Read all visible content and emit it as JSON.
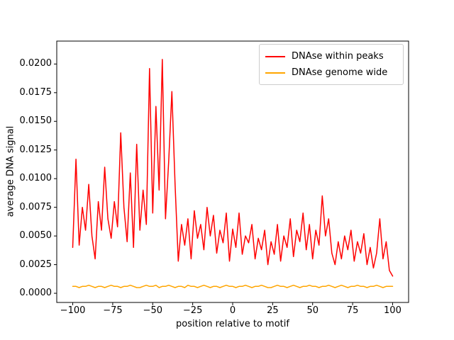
{
  "figure": {
    "background": "#ffffff"
  },
  "chart_data": {
    "type": "line",
    "title": "",
    "xlabel": "position relative to motif",
    "ylabel": "average DNA signal",
    "xlim": [
      -110,
      110
    ],
    "ylim": [
      -0.0008,
      0.022
    ],
    "grid": false,
    "legend_position": "upper right",
    "xticks": [
      -100,
      -75,
      -50,
      -25,
      0,
      25,
      50,
      75,
      100
    ],
    "xtick_labels": [
      "−100",
      "−75",
      "−50",
      "−25",
      "0",
      "25",
      "50",
      "75",
      "100"
    ],
    "yticks": [
      0.0,
      0.0025,
      0.005,
      0.0075,
      0.01,
      0.0125,
      0.015,
      0.0175,
      0.02
    ],
    "ytick_labels": [
      "0.0000",
      "0.0025",
      "0.0050",
      "0.0075",
      "0.0100",
      "0.0125",
      "0.0150",
      "0.0175",
      "0.0200"
    ],
    "x": [
      -100,
      -98,
      -96,
      -94,
      -92,
      -90,
      -88,
      -86,
      -84,
      -82,
      -80,
      -78,
      -76,
      -74,
      -72,
      -70,
      -68,
      -66,
      -64,
      -62,
      -60,
      -58,
      -56,
      -54,
      -52,
      -50,
      -48,
      -46,
      -44,
      -42,
      -40,
      -38,
      -36,
      -34,
      -32,
      -30,
      -28,
      -26,
      -24,
      -22,
      -20,
      -18,
      -16,
      -14,
      -12,
      -10,
      -8,
      -6,
      -4,
      -2,
      0,
      2,
      4,
      6,
      8,
      10,
      12,
      14,
      16,
      18,
      20,
      22,
      24,
      26,
      28,
      30,
      32,
      34,
      36,
      38,
      40,
      42,
      44,
      46,
      48,
      50,
      52,
      54,
      56,
      58,
      60,
      62,
      64,
      66,
      68,
      70,
      72,
      74,
      76,
      78,
      80,
      82,
      84,
      86,
      88,
      90,
      92,
      94,
      96,
      98,
      100
    ],
    "series": [
      {
        "name": "DNAse within peaks",
        "color": "#ff0000",
        "values": [
          0.004,
          0.0117,
          0.0042,
          0.0075,
          0.0055,
          0.0095,
          0.005,
          0.003,
          0.008,
          0.0055,
          0.011,
          0.0065,
          0.0048,
          0.008,
          0.0058,
          0.014,
          0.0075,
          0.0045,
          0.0105,
          0.004,
          0.013,
          0.0055,
          0.009,
          0.006,
          0.0196,
          0.007,
          0.0163,
          0.009,
          0.0204,
          0.0065,
          0.0115,
          0.0176,
          0.0095,
          0.0028,
          0.006,
          0.0042,
          0.0065,
          0.003,
          0.0072,
          0.0048,
          0.006,
          0.0038,
          0.0075,
          0.005,
          0.0068,
          0.0035,
          0.0055,
          0.0044,
          0.007,
          0.0028,
          0.0056,
          0.004,
          0.007,
          0.0034,
          0.005,
          0.0044,
          0.006,
          0.003,
          0.0048,
          0.0038,
          0.0055,
          0.0025,
          0.0045,
          0.0034,
          0.006,
          0.0028,
          0.005,
          0.004,
          0.0065,
          0.0032,
          0.0055,
          0.0045,
          0.007,
          0.0038,
          0.006,
          0.003,
          0.0055,
          0.0042,
          0.0085,
          0.005,
          0.0065,
          0.0035,
          0.0025,
          0.0045,
          0.003,
          0.005,
          0.0038,
          0.0055,
          0.0028,
          0.0045,
          0.0035,
          0.0052,
          0.0025,
          0.004,
          0.0022,
          0.0035,
          0.0065,
          0.003,
          0.0045,
          0.002,
          0.0015
        ]
      },
      {
        "name": "DNAse genome wide",
        "color": "#ffa500",
        "values": [
          0.0006,
          0.0006,
          0.0005,
          0.0006,
          0.0006,
          0.0007,
          0.0006,
          0.0005,
          0.0006,
          0.0006,
          0.0005,
          0.0006,
          0.0007,
          0.0006,
          0.0006,
          0.0005,
          0.0006,
          0.0006,
          0.0007,
          0.0006,
          0.0005,
          0.0005,
          0.0006,
          0.0007,
          0.0006,
          0.0006,
          0.0007,
          0.0005,
          0.0006,
          0.0006,
          0.0007,
          0.0006,
          0.0005,
          0.0006,
          0.0006,
          0.0005,
          0.0007,
          0.0006,
          0.0006,
          0.0005,
          0.0006,
          0.0007,
          0.0006,
          0.0005,
          0.0006,
          0.0006,
          0.0005,
          0.0006,
          0.0007,
          0.0006,
          0.0006,
          0.0005,
          0.0006,
          0.0006,
          0.0007,
          0.0006,
          0.0005,
          0.0006,
          0.0006,
          0.0007,
          0.0006,
          0.0005,
          0.0005,
          0.0006,
          0.0007,
          0.0006,
          0.0006,
          0.0005,
          0.0006,
          0.0007,
          0.0006,
          0.0005,
          0.0006,
          0.0006,
          0.0007,
          0.0006,
          0.0006,
          0.0005,
          0.0006,
          0.0006,
          0.0007,
          0.0006,
          0.0005,
          0.0006,
          0.0007,
          0.0006,
          0.0005,
          0.0006,
          0.0006,
          0.0007,
          0.0006,
          0.0006,
          0.0005,
          0.0006,
          0.0006,
          0.0007,
          0.0006,
          0.0005,
          0.0006,
          0.0006,
          0.0006
        ]
      }
    ]
  }
}
